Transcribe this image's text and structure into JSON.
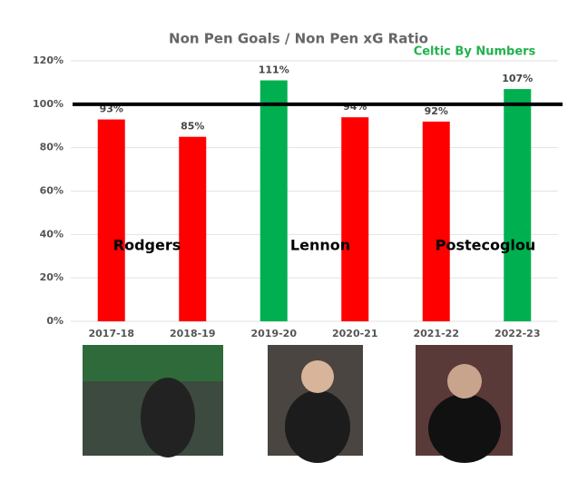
{
  "chart_data": {
    "type": "bar",
    "title": "Non Pen Goals / Non Pen xG Ratio",
    "subtitle": "Celtic By Numbers",
    "categories": [
      "2017-18",
      "2018-19",
      "2019-20",
      "2020-21",
      "2021-22",
      "2022-23"
    ],
    "values": [
      93,
      85,
      111,
      94,
      92,
      107
    ],
    "value_labels": [
      "93%",
      "85%",
      "111%",
      "94%",
      "92%",
      "107%"
    ],
    "colors": [
      "#ff0000",
      "#ff0000",
      "#00b050",
      "#ff0000",
      "#ff0000",
      "#00b050"
    ],
    "ylim": [
      0,
      120
    ],
    "yticks": [
      {
        "value": 0,
        "label": "0%"
      },
      {
        "value": 20,
        "label": "20%"
      },
      {
        "value": 40,
        "label": "40%"
      },
      {
        "value": 60,
        "label": "60%"
      },
      {
        "value": 80,
        "label": "80%"
      },
      {
        "value": 100,
        "label": "100%"
      },
      {
        "value": 120,
        "label": "120%"
      }
    ],
    "grid": true,
    "reference_line": 100,
    "annotations": [
      "Rodgers",
      "Lennon",
      "Postecoglou"
    ]
  }
}
